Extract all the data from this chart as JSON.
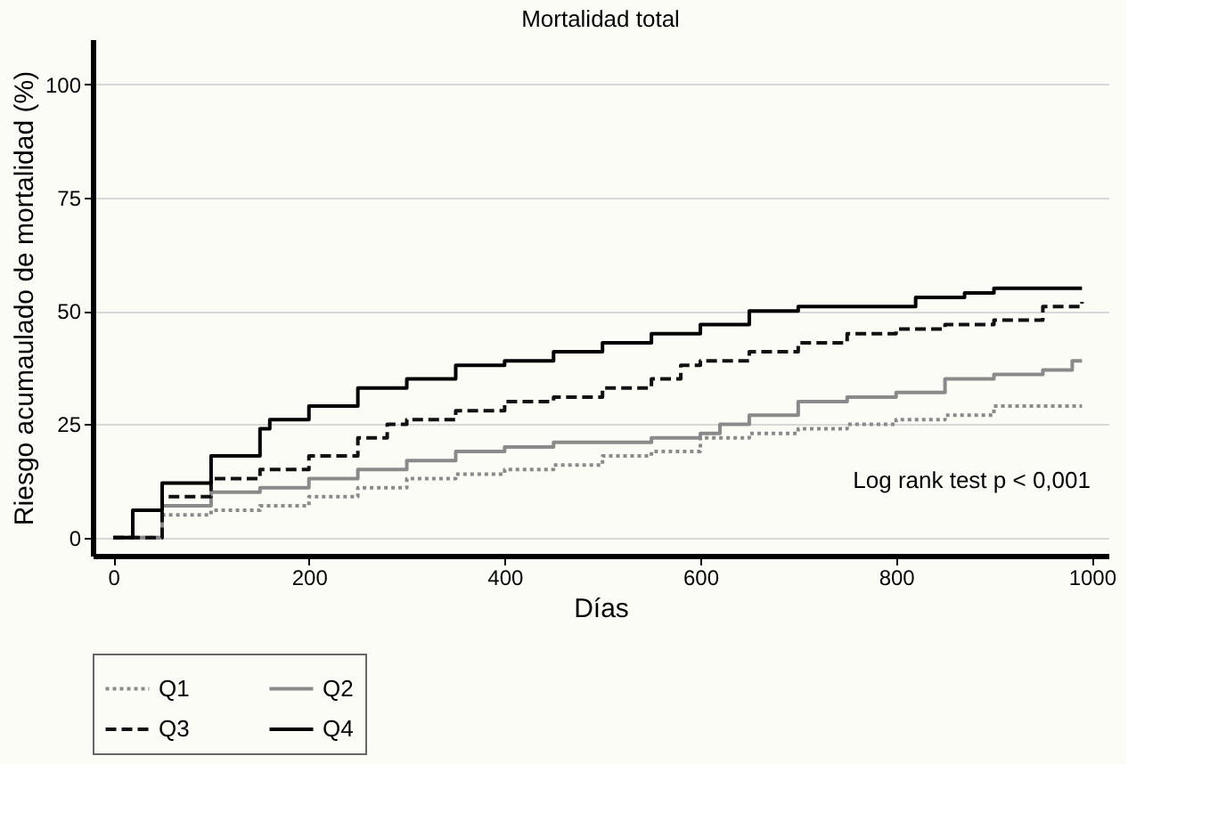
{
  "chart_data": {
    "type": "step",
    "title": "Mortalidad total",
    "xlabel": "Días",
    "ylabel": "Riesgo acumaulado de mortalidad (%)",
    "xlim": [
      -21,
      1017
    ],
    "xticks": [
      0,
      200,
      400,
      600,
      800,
      1000
    ],
    "ylim": [
      -4,
      110
    ],
    "yticks": [
      0,
      25,
      50,
      75,
      100
    ],
    "grid": "y",
    "legend": "bottom",
    "annotations": [
      "Log rank test p < 0,001"
    ],
    "series": [
      {
        "name": "Q1",
        "color": "#8a8a8a",
        "line_style": "dotted",
        "x": [
          0,
          50,
          100,
          150,
          200,
          250,
          300,
          350,
          400,
          450,
          500,
          550,
          600,
          650,
          700,
          750,
          800,
          850,
          900,
          990
        ],
        "values": [
          0,
          5,
          6,
          7,
          9,
          11,
          13,
          14,
          15,
          16,
          18,
          19,
          22,
          23,
          24,
          25,
          26,
          27,
          29,
          29
        ]
      },
      {
        "name": "Q2",
        "color": "#8a8a8a",
        "line_style": "solid",
        "x": [
          0,
          50,
          100,
          150,
          200,
          250,
          300,
          350,
          400,
          450,
          550,
          600,
          620,
          650,
          700,
          750,
          800,
          850,
          900,
          950,
          980,
          990
        ],
        "values": [
          0,
          7,
          10,
          11,
          13,
          15,
          17,
          19,
          20,
          21,
          22,
          23,
          25,
          27,
          30,
          31,
          32,
          35,
          36,
          37,
          39,
          39
        ]
      },
      {
        "name": "Q3",
        "color": "#111111",
        "line_style": "dashed",
        "x": [
          0,
          50,
          100,
          150,
          200,
          250,
          280,
          300,
          350,
          400,
          450,
          500,
          550,
          580,
          600,
          650,
          700,
          750,
          800,
          850,
          900,
          950,
          990
        ],
        "values": [
          0,
          9,
          13,
          15,
          18,
          22,
          25,
          26,
          28,
          30,
          31,
          33,
          35,
          38,
          39,
          41,
          43,
          45,
          46,
          47,
          48,
          51,
          52
        ]
      },
      {
        "name": "Q4",
        "color": "#000000",
        "line_style": "solid",
        "x": [
          0,
          20,
          50,
          100,
          150,
          160,
          200,
          250,
          300,
          350,
          400,
          450,
          500,
          550,
          600,
          650,
          700,
          820,
          870,
          900,
          990
        ],
        "values": [
          0,
          6,
          12,
          18,
          24,
          26,
          29,
          33,
          35,
          38,
          39,
          41,
          43,
          45,
          47,
          50,
          51,
          53,
          54,
          55,
          55
        ]
      }
    ]
  }
}
